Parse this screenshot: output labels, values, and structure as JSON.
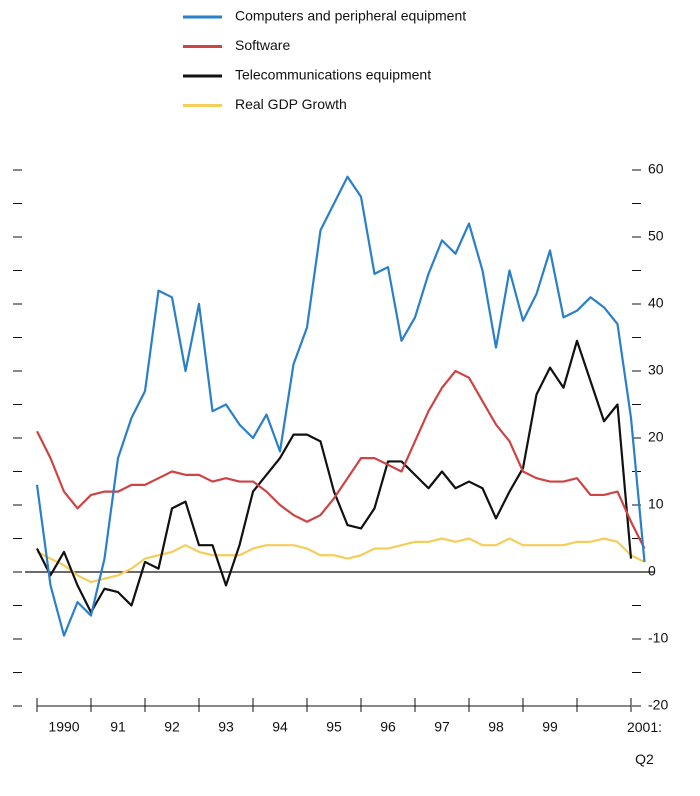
{
  "chart_data": {
    "type": "line",
    "categories": [
      null,
      null,
      "1990",
      null,
      null,
      null,
      "91",
      null,
      null,
      null,
      "92",
      null,
      null,
      null,
      "93",
      null,
      null,
      null,
      "94",
      null,
      null,
      null,
      "95",
      null,
      null,
      null,
      "96",
      null,
      null,
      null,
      "97",
      null,
      null,
      null,
      "98",
      null,
      null,
      null,
      "99",
      null,
      null,
      null,
      null,
      null,
      null,
      "2001: Q2"
    ],
    "series": [
      {
        "name": "Computers and peripheral equipment",
        "color": "#2a7fc9",
        "values": [
          13,
          -2,
          -9.5,
          -4.5,
          -6.5,
          2,
          17,
          23,
          27,
          42,
          41,
          30,
          40,
          24,
          25,
          22,
          20,
          23.5,
          18,
          31,
          36.5,
          51,
          55,
          59,
          56,
          44.5,
          45.5,
          34.5,
          38,
          44.5,
          49.5,
          47.5,
          52,
          45,
          33.5,
          45,
          37.5,
          41.5,
          48,
          38,
          39,
          41,
          39.5,
          37,
          23,
          1.5
        ]
      },
      {
        "name": "Software",
        "color": "#cc4444",
        "values": [
          21,
          17,
          12,
          9.5,
          11.5,
          12,
          12,
          13,
          13,
          14,
          15,
          14.5,
          14.5,
          13.5,
          14,
          13.5,
          13.5,
          12,
          10,
          8.5,
          7.5,
          8.5,
          11,
          14,
          17,
          17,
          16,
          15,
          19.5,
          24,
          27.5,
          30,
          29,
          25.5,
          22,
          19.5,
          15,
          14,
          13.5,
          13.5,
          14,
          11.5,
          11.5,
          12,
          7.5,
          3.5
        ]
      },
      {
        "name": "Telecommunications equipment",
        "color": "#111111",
        "values": [
          3.5,
          -0.5,
          3,
          -2,
          -6,
          -2.5,
          -3,
          -5,
          1.5,
          0.5,
          9.5,
          10.5,
          4,
          4,
          -2,
          4,
          12,
          14.5,
          17,
          20.5,
          20.5,
          19.5,
          12,
          7,
          6.5,
          9.5,
          16.5,
          16.5,
          14.5,
          12.5,
          15,
          12.5,
          13.5,
          12.5,
          8,
          12,
          15.5,
          26.5,
          30.5,
          27.5,
          34.5,
          28.5,
          22.5,
          25,
          2,
          null
        ]
      },
      {
        "name": "Real GDP Growth",
        "color": "#f5cd5a",
        "values": [
          3,
          2,
          1,
          -0.5,
          -1.5,
          -1,
          -0.5,
          0.5,
          2,
          2.5,
          3,
          4,
          3,
          2.5,
          2.5,
          2.5,
          3.5,
          4,
          4,
          4,
          3.5,
          2.5,
          2.5,
          2,
          2.5,
          3.5,
          3.5,
          4,
          4.5,
          4.5,
          5,
          4.5,
          5,
          4,
          4,
          5,
          4,
          4,
          4,
          4,
          4.5,
          4.5,
          5,
          4.5,
          2.5,
          1.5
        ]
      }
    ],
    "ylim": [
      -20,
      60
    ],
    "yticks": [
      -20,
      -10,
      0,
      10,
      20,
      30,
      40,
      50,
      60
    ],
    "yminorticks": [
      -15,
      -5,
      5,
      15,
      25,
      35,
      45,
      55
    ],
    "zero_line": true,
    "legend": "top"
  }
}
